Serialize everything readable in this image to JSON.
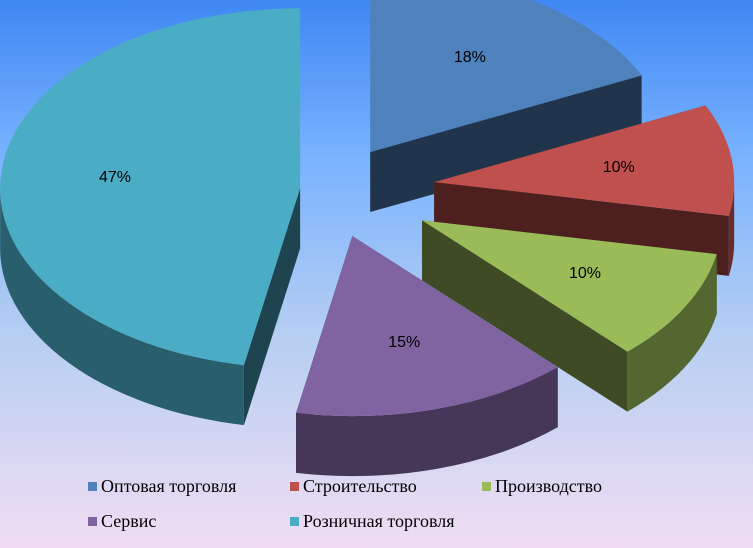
{
  "chart_data": {
    "type": "pie",
    "style": "3d-exploded",
    "categories": [
      "Оптовая торговля",
      "Строительство",
      "Производство",
      "Сервис",
      "Розничная торговля"
    ],
    "values": [
      18,
      10,
      10,
      15,
      47
    ],
    "labels": [
      "18%",
      "10%",
      "10%",
      "15%",
      "47%"
    ],
    "colors": [
      "#4f81bd",
      "#c0504d",
      "#9bbb59",
      "#8064a2",
      "#4bacc6"
    ],
    "legend_position": "bottom",
    "title": ""
  }
}
